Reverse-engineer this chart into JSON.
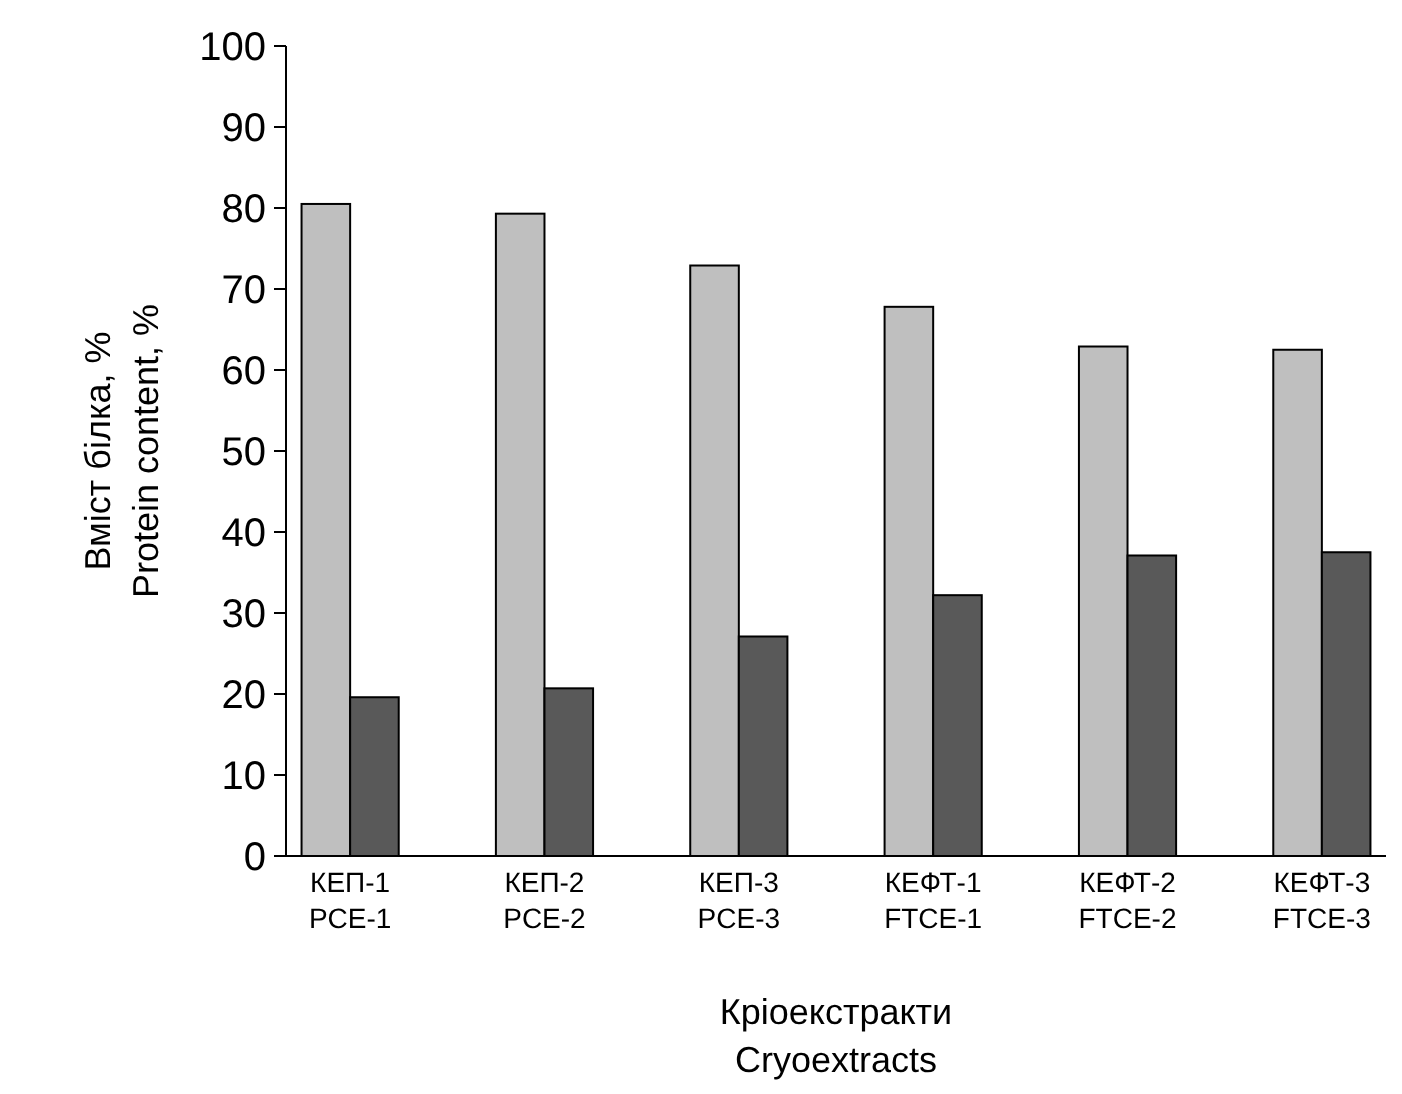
{
  "chart_data": {
    "type": "bar",
    "xlabel": "Кріоекстракти\nCryoextracts",
    "ylabel": "Вміст білка, %\nProtein content, %",
    "categories": [
      "КЕП-1\nPCE-1",
      "КЕП-2\nPCE-2",
      "КЕП-3\nPCE-3",
      "КЕФТ-1\nFTCE-1",
      "КЕФТ-2\nFTCE-2",
      "КЕФТ-3\nFTCE-3"
    ],
    "series": [
      {
        "color": "#bfbfbf",
        "values": [
          80.5,
          79.3,
          72.9,
          67.8,
          62.9,
          62.5
        ]
      },
      {
        "color": "#595959",
        "values": [
          19.6,
          20.7,
          27.1,
          32.2,
          37.1,
          37.5
        ]
      }
    ],
    "ylim": [
      0,
      100
    ],
    "yticks": [
      0,
      10,
      20,
      30,
      40,
      50,
      60,
      70,
      80,
      90,
      100
    ],
    "grid": false
  }
}
